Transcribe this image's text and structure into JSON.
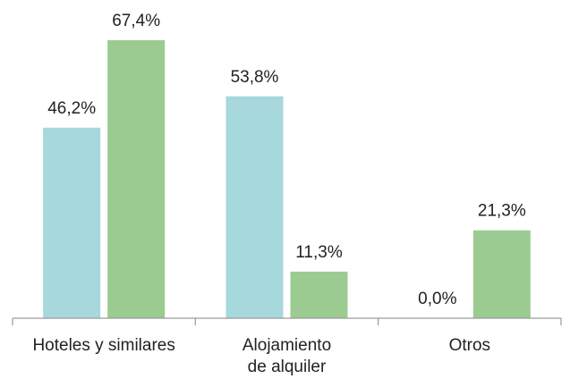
{
  "chart_data": {
    "type": "bar",
    "categories": [
      "Hoteles y similares",
      "Alojamiento de alquiler",
      "Otros"
    ],
    "category_lines": [
      [
        "Hoteles y similares"
      ],
      [
        "Alojamiento",
        "de alquiler"
      ],
      [
        "Otros"
      ]
    ],
    "series": [
      {
        "color": "#a6d8dc",
        "values": [
          46.2,
          53.8,
          0.0
        ],
        "labels": [
          "46,2%",
          "53,8%",
          "0,0%"
        ]
      },
      {
        "color": "#9bcb91",
        "values": [
          67.4,
          11.3,
          21.3
        ],
        "labels": [
          "67,4%",
          "11,3%",
          "21,3%"
        ]
      }
    ],
    "ylim": [
      0,
      67.4
    ],
    "grid": false,
    "legend": "none"
  }
}
